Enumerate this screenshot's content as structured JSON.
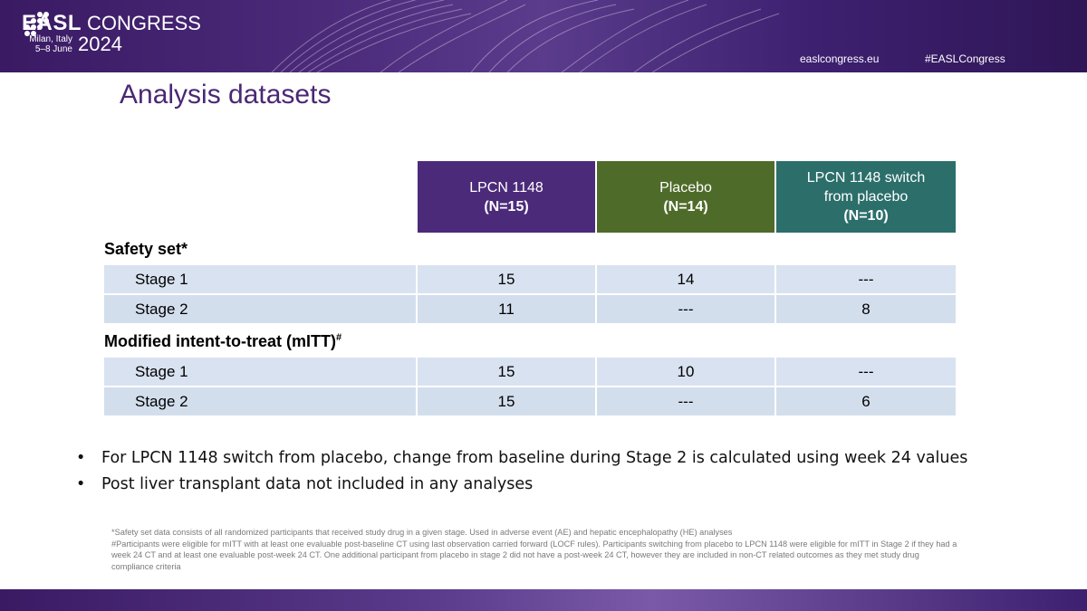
{
  "header": {
    "brand": "EASL",
    "event": "CONGRESS",
    "location": "Milan, Italy",
    "dates": "5–8 June",
    "year": "2024",
    "website": "easlcongress.eu",
    "hashtag": "#EASLCongress",
    "colors": {
      "banner": "#3a1a63",
      "text": "#ffffff"
    }
  },
  "slide": {
    "title": "Analysis datasets"
  },
  "table": {
    "columns": [
      {
        "name": "LPCN 1148",
        "n": "(N=15)",
        "color": "#4b2a7a"
      },
      {
        "name": "Placebo",
        "n": "(N=14)",
        "color": "#4f6b29"
      },
      {
        "name_line1": "LPCN 1148 switch",
        "name_line2": "from placebo",
        "n": "(N=10)",
        "color": "#2b6e6a"
      }
    ],
    "sections": [
      {
        "title": "Safety set",
        "marker": "*",
        "rows": [
          {
            "label": "Stage 1",
            "values": [
              "15",
              "14",
              "---"
            ]
          },
          {
            "label": "Stage 2",
            "values": [
              "11",
              "---",
              "8"
            ]
          }
        ]
      },
      {
        "title": "Modified intent-to-treat (mITT)",
        "marker": "#",
        "rows": [
          {
            "label": "Stage 1",
            "values": [
              "15",
              "10",
              "---"
            ]
          },
          {
            "label": "Stage 2",
            "values": [
              "15",
              "---",
              "6"
            ]
          }
        ]
      }
    ]
  },
  "bullets": [
    "For LPCN 1148 switch from placebo, change from baseline during Stage 2 is calculated using week 24 values",
    "Post liver transplant data not included in any analyses"
  ],
  "footnotes": [
    "*Safety set data consists of all randomized participants that received study drug in a given stage. Used in adverse event (AE) and hepatic encephalopathy (HE) analyses",
    "#Participants were eligible for mITT with at least one evaluable post-baseline CT using last observation carried forward (LOCF rules). Participants switching from placebo to LPCN 1148 were eligible for mITT in Stage 2 if they had a week 24 CT and at least one evaluable post-week 24 CT. One additional participant from placebo in stage 2 did not have a post-week 24 CT, however they are included in non-CT related outcomes as they met study drug compliance criteria"
  ]
}
